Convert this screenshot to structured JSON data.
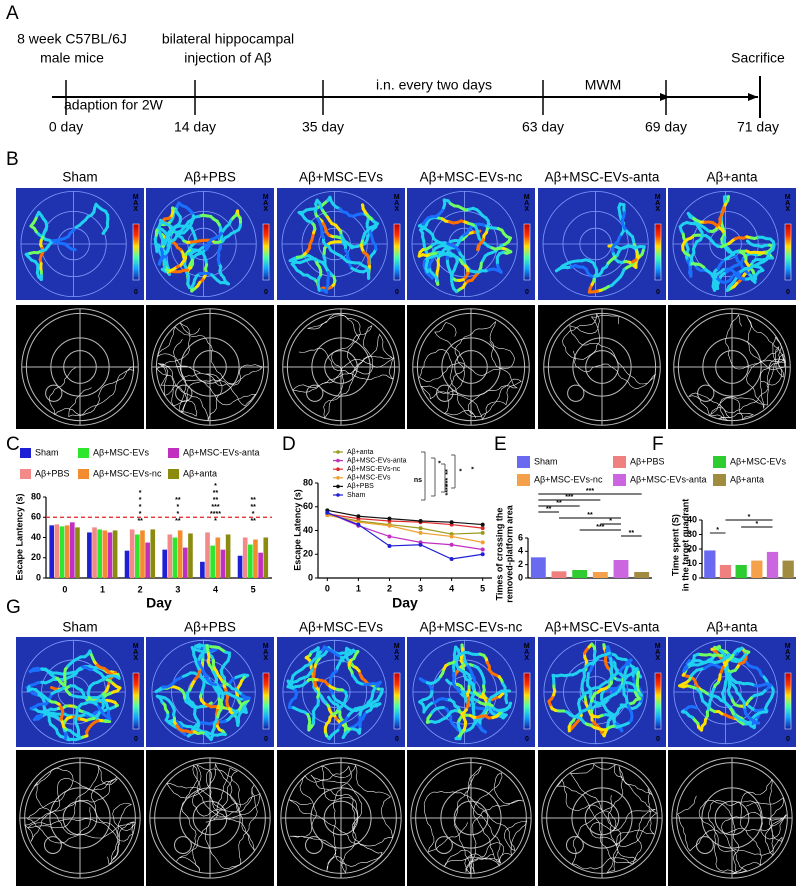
{
  "panel_a": {
    "label": "A",
    "left_top": "8 week C57BL/6J",
    "left_bottom": "male mice",
    "mid_top": "bilateral hippocampal",
    "mid_bottom": "injection of Aβ",
    "end": "Sacrifice",
    "phase1": "adaption for 2W",
    "phase2": "i.n. every two days",
    "phase3": "MWM",
    "days": [
      "0 day",
      "14 day",
      "35 day",
      "63 day",
      "69 day",
      "71 day"
    ]
  },
  "panel_b": {
    "label": "B",
    "groups": [
      "Sham",
      "Aβ+PBS",
      "Aβ+MSC-EVs",
      "Aβ+MSC-EVs-nc",
      "Aβ+MSC-EVs-anta",
      "Aβ+anta"
    ],
    "colorbar_max": "MAX",
    "colorbar_min": "0"
  },
  "panel_g": {
    "label": "G",
    "groups": [
      "Sham",
      "Aβ+PBS",
      "Aβ+MSC-EVs",
      "Aβ+MSC-EVs-nc",
      "Aβ+MSC-EVs-anta",
      "Aβ+anta"
    ],
    "colorbar_max": "MAX",
    "colorbar_min": "0"
  },
  "chart_data": [
    {
      "panel": "C",
      "type": "bar",
      "ylabel": "Escape Lantency (s)",
      "xlabel": "Day",
      "categories": [
        "0",
        "1",
        "2",
        "3",
        "4",
        "5"
      ],
      "series": [
        {
          "name": "Sham",
          "color": "#1f1fd6",
          "values": [
            52,
            45,
            27,
            28,
            16,
            22
          ]
        },
        {
          "name": "Aβ+PBS",
          "color": "#f28a8a",
          "values": [
            53,
            50,
            48,
            43,
            45,
            40
          ]
        },
        {
          "name": "Aβ+MSC-EVs",
          "color": "#2ee62e",
          "values": [
            51,
            48,
            43,
            40,
            32,
            33
          ]
        },
        {
          "name": "Aβ+MSC-EVs-nc",
          "color": "#f28c2e",
          "values": [
            52,
            47,
            47,
            47,
            40,
            38
          ]
        },
        {
          "name": "Aβ+MSC-EVs-anta",
          "color": "#c02fc0",
          "values": [
            55,
            45,
            35,
            30,
            28,
            25
          ]
        },
        {
          "name": "Aβ+anta",
          "color": "#8b8b10",
          "values": [
            50,
            47,
            48,
            44,
            43,
            40
          ]
        }
      ],
      "ylim": [
        0,
        80
      ],
      "yticks": [
        0,
        20,
        40,
        60,
        80
      ],
      "reference_line": 60,
      "reference_color": "#e02020",
      "annotations": [
        [],
        [],
        [
          "**",
          "*",
          "*",
          "*",
          "*"
        ],
        [
          "**",
          "*",
          "*",
          "**"
        ],
        [
          "*",
          "****",
          "***",
          "**",
          "**",
          "*"
        ],
        [
          "**",
          "*",
          "**",
          "**"
        ]
      ]
    },
    {
      "panel": "D",
      "type": "line",
      "ylabel": "Escape Latency (s)",
      "xlabel": "Day",
      "x": [
        0,
        1,
        2,
        3,
        4,
        5
      ],
      "xlim": [
        -0.3,
        5.3
      ],
      "xticks": [
        0,
        1,
        2,
        3,
        4,
        5
      ],
      "series": [
        {
          "name": "Aβ+anta",
          "color": "#9a9a1a",
          "values": [
            53,
            48,
            45,
            42,
            37,
            38
          ]
        },
        {
          "name": "Aβ+MSC-EVs-anta",
          "color": "#c02fc0",
          "values": [
            55,
            44,
            35,
            30,
            28,
            24
          ]
        },
        {
          "name": "Aβ+MSC-EVs-nc",
          "color": "#e02a2a",
          "values": [
            54,
            50,
            48,
            47,
            45,
            42
          ]
        },
        {
          "name": "Aβ+MSC-EVs",
          "color": "#f0a030",
          "values": [
            53,
            47,
            44,
            38,
            35,
            30
          ]
        },
        {
          "name": "Aβ+PBS",
          "color": "#111111",
          "values": [
            57,
            52,
            50,
            48,
            47,
            45
          ]
        },
        {
          "name": "Sham",
          "color": "#1f1fd6",
          "values": [
            55,
            45,
            27,
            28,
            16,
            20
          ]
        }
      ],
      "ylim": [
        0,
        80
      ],
      "yticks": [
        0,
        20,
        40,
        60,
        80
      ],
      "annotations": [
        "ns",
        "*",
        "**",
        "***",
        "****",
        "*",
        "*"
      ]
    },
    {
      "panel": "E",
      "type": "bar",
      "ylabel": [
        "Times of crossing the",
        "removed-platform area"
      ],
      "categories": [
        "Sham",
        "Aβ+PBS",
        "Aβ+MSC-EVs",
        "Aβ+MSC-EVs-nc",
        "Aβ+MSC-EVs-anta",
        "Aβ+anta"
      ],
      "colors": [
        "#6a6af0",
        "#f08080",
        "#2ecc2e",
        "#f5a04a",
        "#cc66e0",
        "#a08b40"
      ],
      "values": [
        3.1,
        1.0,
        1.2,
        0.9,
        2.7,
        0.9
      ],
      "ylim": [
        0,
        6
      ],
      "yticks": [
        0,
        2,
        4,
        6
      ],
      "annotations": [
        "***",
        "***",
        "**",
        "**",
        "**",
        "*",
        "***",
        "**"
      ]
    },
    {
      "panel": "F",
      "type": "bar",
      "ylabel": [
        "Time spent (S)",
        "in the target quadrant"
      ],
      "colors": [
        "#6a6af0",
        "#f08080",
        "#2ecc2e",
        "#f5a04a",
        "#cc66e0",
        "#a08b40"
      ],
      "values": [
        19,
        9,
        9,
        12,
        18,
        12
      ],
      "ylim": [
        0,
        40
      ],
      "yticks": [
        0,
        10,
        20,
        30,
        40
      ],
      "annotations": [
        "*",
        "*",
        "*"
      ]
    }
  ]
}
